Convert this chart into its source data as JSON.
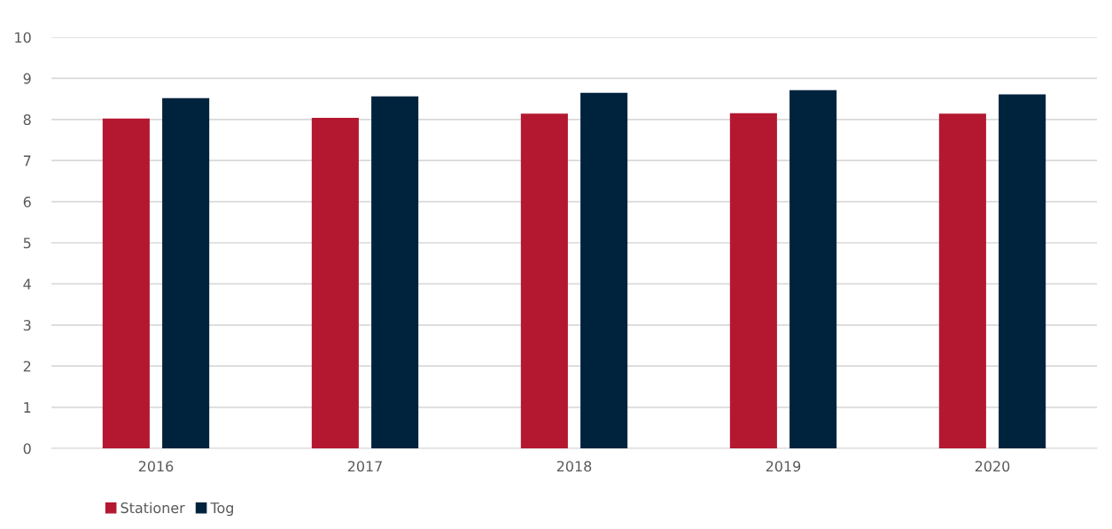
{
  "chart_data": {
    "type": "bar",
    "categories": [
      "2016",
      "2017",
      "2018",
      "2019",
      "2020"
    ],
    "series": [
      {
        "name": "Stationer",
        "color": "#b41831",
        "values": [
          8.02,
          8.04,
          8.14,
          8.15,
          8.14
        ]
      },
      {
        "name": "Tog",
        "color": "#00233d",
        "values": [
          8.52,
          8.56,
          8.65,
          8.71,
          8.61
        ]
      }
    ],
    "ylim": [
      0,
      10
    ],
    "yticks": [
      0,
      1,
      2,
      3,
      4,
      5,
      6,
      7,
      8,
      9,
      10
    ],
    "grid": "y",
    "legend": "bottom left"
  }
}
